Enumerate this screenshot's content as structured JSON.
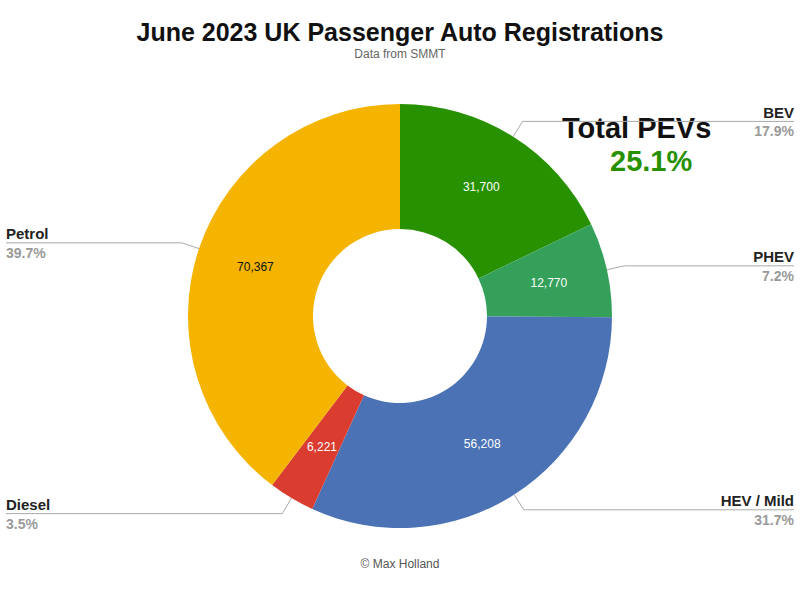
{
  "chart_data": {
    "type": "donut",
    "title": "June 2023 UK Passenger Auto Registrations",
    "subtitle": "Data from SMMT",
    "categories": [
      "BEV",
      "PHEV",
      "HEV / Mild",
      "Diesel",
      "Petrol"
    ],
    "values": [
      31700,
      12770,
      56208,
      6221,
      70367
    ],
    "value_labels": [
      "31,700",
      "12,770",
      "56,208",
      "6,221",
      "70,367"
    ],
    "percents": [
      17.9,
      7.2,
      31.7,
      3.5,
      39.7
    ],
    "percent_labels": [
      "17.9%",
      "7.2%",
      "31.7%",
      "3.5%",
      "39.7%"
    ],
    "colors": [
      "#279100",
      "#34a05a",
      "#4a72b5",
      "#db3c30",
      "#f4b400"
    ],
    "data_labels": true,
    "annotation": {
      "text": "Total PEVs",
      "value": 25.1,
      "label": "25.1%",
      "color": "#279100"
    },
    "credit": "© Max Holland"
  }
}
